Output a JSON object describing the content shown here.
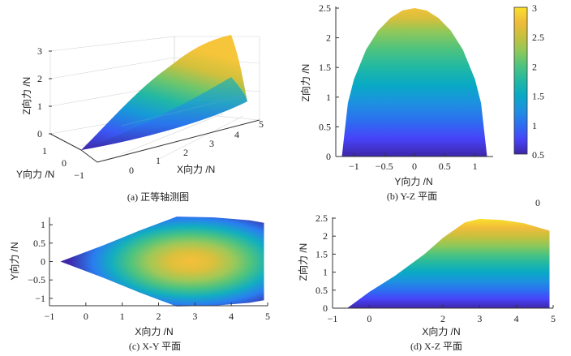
{
  "figure": {
    "stray_label": "0",
    "colorbar": {
      "ticks": [
        "3",
        "2.5",
        "2",
        "1.5",
        "1",
        "0.5"
      ],
      "range": [
        0.5,
        3
      ]
    },
    "colormap": [
      "#3e26a8",
      "#4743f8",
      "#2c6ff0",
      "#1d91e0",
      "#09a9c5",
      "#21b8a4",
      "#4cc380",
      "#8ec85a",
      "#c6c03e",
      "#f0bc3a",
      "#f9e02a"
    ]
  },
  "chart_data": [
    {
      "id": "a",
      "type": "surface3d",
      "caption": "(a) 正等轴测图",
      "xlabel": "X向力 /N",
      "ylabel": "Y向力 /N",
      "zlabel": "Z向力 /N",
      "x_ticks": [
        "0",
        "1",
        "2",
        "3",
        "4",
        "5"
      ],
      "y_ticks": [
        "1",
        "0",
        "−1"
      ],
      "z_ticks": [
        "3",
        "2",
        "1",
        "0"
      ],
      "xlim": [
        -1,
        5
      ],
      "ylim": [
        -1,
        1
      ],
      "zlim": [
        0,
        3
      ]
    },
    {
      "id": "b",
      "type": "area",
      "caption": "(b) Y-Z 平面",
      "xlabel": "Y向力 /N",
      "ylabel": "Z向力 /N",
      "x_ticks": [
        "−1",
        "−0.5",
        "0",
        "0.5",
        "1"
      ],
      "y_ticks": [
        "2.5",
        "2",
        "1.5",
        "1",
        "0.5",
        "0"
      ],
      "xlim": [
        -1.3,
        1.3
      ],
      "ylim": [
        0,
        2.5
      ],
      "boundary": {
        "y": [
          -1.2,
          -1.1,
          -1.0,
          -0.8,
          -0.6,
          -0.4,
          -0.2,
          0.0,
          0.2,
          0.4,
          0.6,
          0.8,
          1.0,
          1.1,
          1.2
        ],
        "z": [
          0.0,
          0.9,
          1.3,
          1.8,
          2.12,
          2.33,
          2.46,
          2.5,
          2.46,
          2.33,
          2.12,
          1.8,
          1.3,
          0.9,
          0.0
        ]
      }
    },
    {
      "id": "c",
      "type": "heatmap",
      "caption": "(c) X-Y 平面",
      "xlabel": "X向力 /N",
      "ylabel": "Y向力 /N",
      "x_ticks": [
        "−1",
        "0",
        "1",
        "2",
        "3",
        "4",
        "5"
      ],
      "y_ticks": [
        "1",
        "0.5",
        "0",
        "−0.5",
        "−1"
      ],
      "xlim": [
        -1,
        5
      ],
      "ylim": [
        -1.2,
        1.2
      ],
      "boundary": {
        "x": [
          -0.7,
          0.5,
          1.5,
          2.5,
          3.5,
          4.5,
          4.9,
          4.9
        ],
        "y_max": [
          0.0,
          0.45,
          0.85,
          1.22,
          1.2,
          1.12,
          1.05,
          -1.05
        ]
      },
      "peak": {
        "x": 3.1,
        "y": 0.0,
        "z": 2.5
      }
    },
    {
      "id": "d",
      "type": "area",
      "caption": "(d) X-Z 平面",
      "xlabel": "X向力 /N",
      "ylabel": "Z向力 /N",
      "x_ticks": [
        "−1",
        "0",
        "2",
        "3",
        "4",
        "5"
      ],
      "y_ticks": [
        "2.5",
        "2",
        "1.5",
        "1",
        "0.5",
        "0"
      ],
      "xlim": [
        -1,
        5
      ],
      "ylim": [
        0,
        2.5
      ],
      "boundary": {
        "x": [
          -0.6,
          0.0,
          0.7,
          1.5,
          2.0,
          2.6,
          3.0,
          3.6,
          4.2,
          4.9
        ],
        "z": [
          0.0,
          0.45,
          0.9,
          1.5,
          1.95,
          2.38,
          2.48,
          2.45,
          2.36,
          2.15
        ]
      }
    }
  ]
}
